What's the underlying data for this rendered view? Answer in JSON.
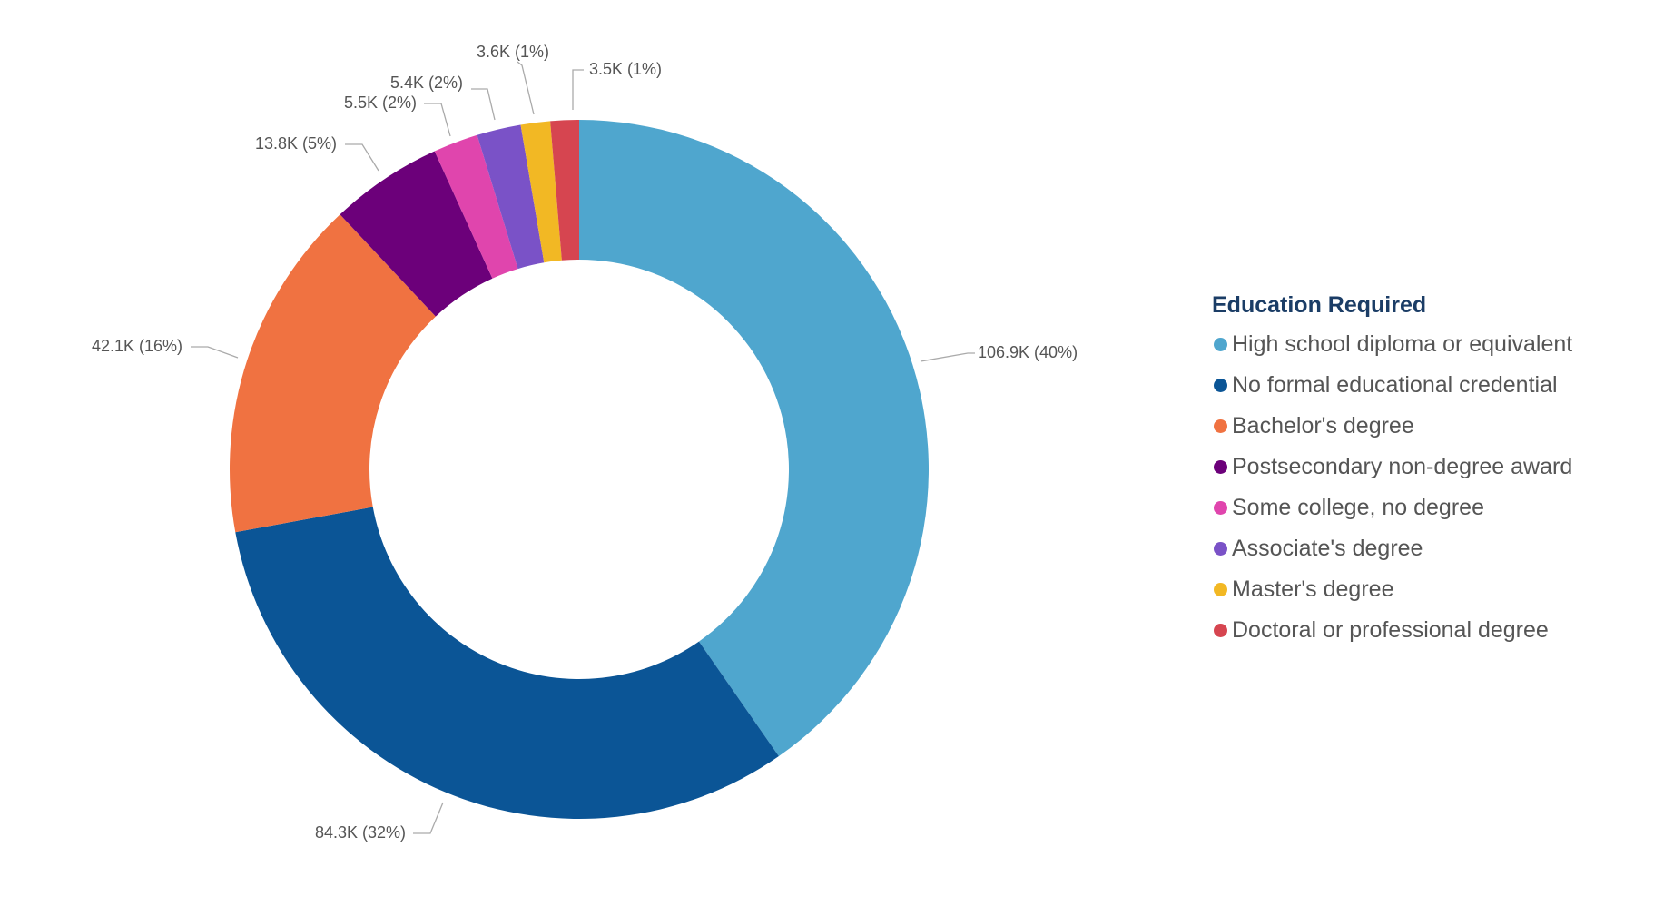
{
  "chart_data": {
    "type": "pie",
    "variant": "donut",
    "legend_title": "Education Required",
    "legend_placement": "right",
    "categories": [
      "High school diploma or equivalent",
      "No formal educational credential",
      "Bachelor's degree",
      "Postsecondary non-degree award",
      "Some college, no degree",
      "Associate's degree",
      "Master's degree",
      "Doctoral or professional degree"
    ],
    "values": [
      106.9,
      84.3,
      42.1,
      13.8,
      5.5,
      5.4,
      3.6,
      3.5
    ],
    "unit": "K",
    "data_labels": [
      "106.9K (40%)",
      "84.3K (32%)",
      "42.1K (16%)",
      "13.8K (5%)",
      "5.5K (2%)",
      "5.4K (2%)",
      "3.6K (1%)",
      "3.5K (1%)"
    ],
    "colors": [
      "#4fa6ce",
      "#0b5596",
      "#f07241",
      "#6c007a",
      "#e045ad",
      "#7a52c7",
      "#f2b824",
      "#d64550"
    ]
  }
}
